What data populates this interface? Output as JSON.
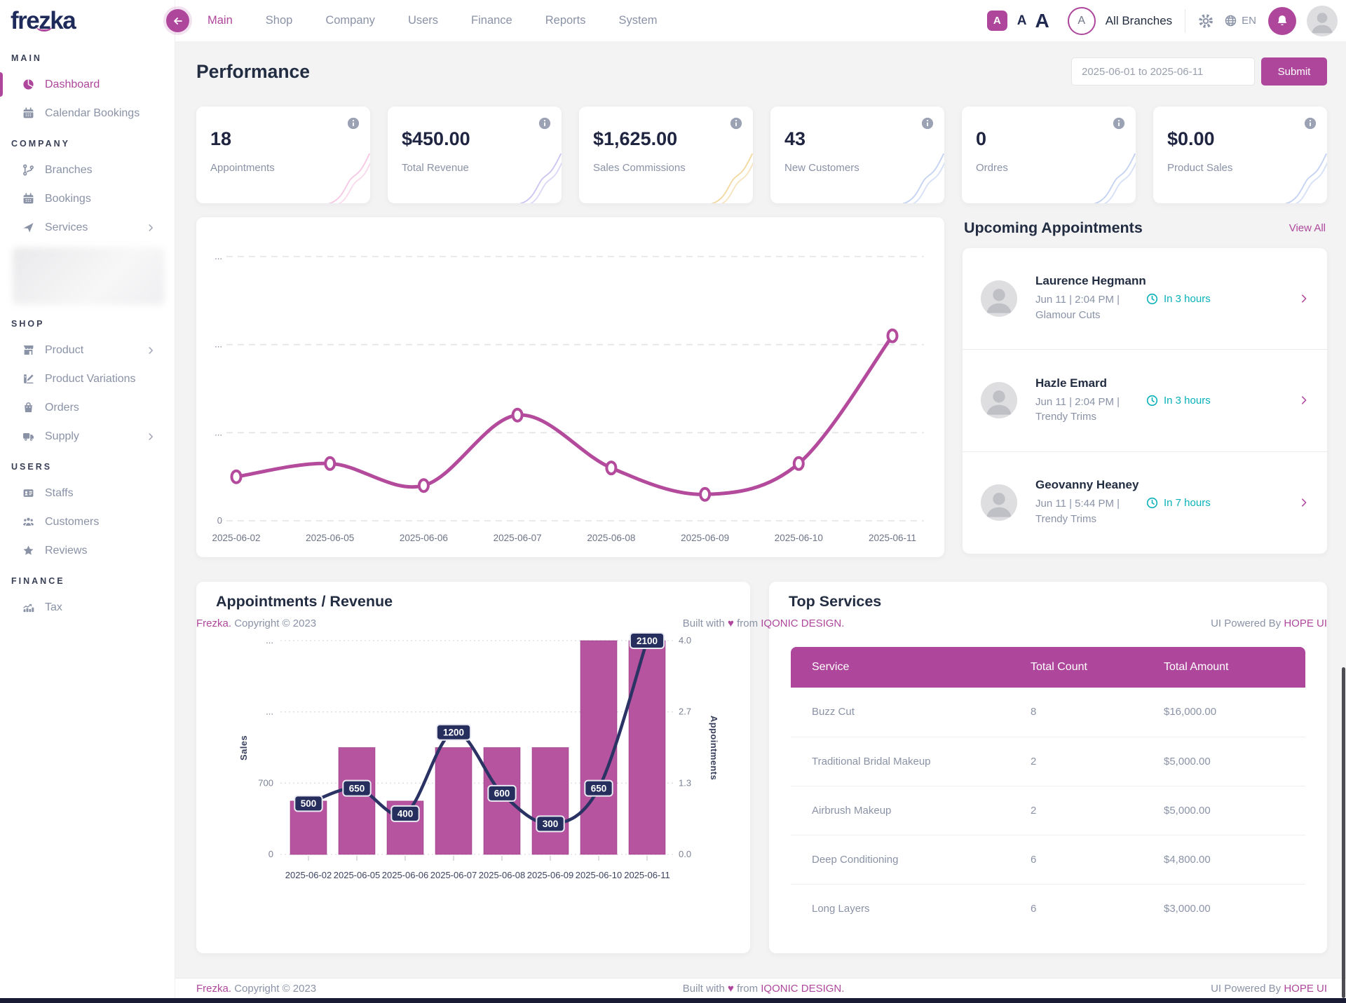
{
  "brand": {
    "pre": "fre",
    "z": "z",
    "post": "ka"
  },
  "navbar": {
    "menu": [
      {
        "label": "Main",
        "active": true
      },
      {
        "label": "Shop",
        "active": false
      },
      {
        "label": "Company",
        "active": false
      },
      {
        "label": "Users",
        "active": false
      },
      {
        "label": "Finance",
        "active": false
      },
      {
        "label": "Reports",
        "active": false
      },
      {
        "label": "System",
        "active": false
      }
    ],
    "font_small": "A",
    "font_medium": "A",
    "font_large": "A",
    "branch_avatar_initial": "A",
    "branch_selector": "All Branches",
    "language": "EN"
  },
  "sidebar": {
    "sections": [
      {
        "title": "MAIN",
        "items": [
          {
            "label": "Dashboard",
            "icon": "pie-chart-icon",
            "active": true
          },
          {
            "label": "Calendar Bookings",
            "icon": "calendar-icon"
          }
        ]
      },
      {
        "title": "COMPANY",
        "items": [
          {
            "label": "Branches",
            "icon": "git-branch-icon"
          },
          {
            "label": "Bookings",
            "icon": "calendar-icon"
          },
          {
            "label": "Services",
            "icon": "send-icon",
            "chevron": true
          },
          {
            "blurred": true
          }
        ]
      },
      {
        "title": "SHOP",
        "items": [
          {
            "label": "Product",
            "icon": "store-icon",
            "chevron": true
          },
          {
            "label": "Product Variations",
            "icon": "variations-icon"
          },
          {
            "label": "Orders",
            "icon": "shopping-bag-icon"
          },
          {
            "label": "Supply",
            "icon": "truck-icon",
            "chevron": true
          }
        ]
      },
      {
        "title": "USERS",
        "items": [
          {
            "label": "Staffs",
            "icon": "id-card-icon"
          },
          {
            "label": "Customers",
            "icon": "users-icon"
          },
          {
            "label": "Reviews",
            "icon": "star-icon"
          }
        ]
      },
      {
        "title": "FINANCE",
        "items": [
          {
            "label": "Tax",
            "icon": "tax-icon"
          }
        ]
      }
    ]
  },
  "page": {
    "title": "Performance",
    "date_range": "2025-06-01 to 2025-06-11",
    "submit": "Submit"
  },
  "stats": [
    {
      "value": "18",
      "label": "Appointments",
      "spark_color": "#f6c9e4"
    },
    {
      "value": "$450.00",
      "label": "Total Revenue",
      "spark_color": "#cdc6f2"
    },
    {
      "value": "$1,625.00",
      "label": "Sales Commissions",
      "spark_color": "#f2d9a2"
    },
    {
      "value": "43",
      "label": "New Customers",
      "spark_color": "#c5d3f2"
    },
    {
      "value": "0",
      "label": "Ordres",
      "spark_color": "#c5d3f2"
    },
    {
      "value": "$0.00",
      "label": "Product Sales",
      "spark_color": "#c5d3f2"
    }
  ],
  "chart_data": [
    {
      "type": "line",
      "name": "performance-trend",
      "x": [
        "2025-06-02",
        "2025-06-05",
        "2025-06-06",
        "2025-06-07",
        "2025-06-08",
        "2025-06-09",
        "2025-06-10",
        "2025-06-11"
      ],
      "series": [
        {
          "name": "Sales",
          "values": [
            500,
            650,
            400,
            1200,
            600,
            300,
            650,
            2100
          ]
        }
      ],
      "ylim": [
        0,
        3000
      ],
      "ytick_labels": [
        "...",
        "...",
        "...",
        "0"
      ],
      "grid": "dashed-horizontal",
      "line_color": "#b44a9c"
    },
    {
      "type": "bar+line",
      "title": "Appointments / Revenue",
      "categories": [
        "2025-06-02",
        "2025-06-05",
        "2025-06-06",
        "2025-06-07",
        "2025-06-08",
        "2025-06-09",
        "2025-06-10",
        "2025-06-11"
      ],
      "series": [
        {
          "name": "Appointments",
          "render": "bar",
          "axis": "right",
          "values": [
            1,
            2,
            1,
            2,
            2,
            2,
            4,
            4
          ],
          "color": "#b7549f"
        },
        {
          "name": "Sales",
          "render": "line",
          "axis": "left",
          "values": [
            500,
            650,
            400,
            1200,
            600,
            300,
            650,
            2100
          ],
          "point_labels": [
            "500",
            "650",
            "400",
            "1200",
            "600",
            "300",
            "650",
            "2100"
          ],
          "color": "#2b3264"
        }
      ],
      "left_axis": {
        "title": "Sales",
        "tick_labels": [
          "...",
          "...",
          "700",
          "0"
        ],
        "max": 2100
      },
      "right_axis": {
        "title": "Appointments",
        "tick_labels": [
          "4.0",
          "2.7",
          "1.3",
          "0.0"
        ],
        "max": 4
      },
      "grid": "dotted-horizontal",
      "legend": "none"
    }
  ],
  "appointments": {
    "title": "Upcoming Appointments",
    "view_all": "View All",
    "items": [
      {
        "name": "Laurence Hegmann",
        "details": "Jun 11 | 2:04 PM | Glamour Cuts",
        "eta": "In 3 hours"
      },
      {
        "name": "Hazle Emard",
        "details": "Jun 11 | 2:04 PM | Trendy Trims",
        "eta": "In 3 hours"
      },
      {
        "name": "Geovanny Heaney",
        "details": "Jun 11 | 5:44 PM | Trendy Trims",
        "eta": "In 7 hours"
      }
    ]
  },
  "top_services": {
    "title": "Top Services",
    "columns": [
      "Service",
      "Total Count",
      "Total Amount"
    ],
    "rows": [
      [
        "Buzz Cut",
        "8",
        "$16,000.00"
      ],
      [
        "Traditional Bridal Makeup",
        "2",
        "$5,000.00"
      ],
      [
        "Airbrush Makeup",
        "2",
        "$5,000.00"
      ],
      [
        "Deep Conditioning",
        "6",
        "$4,800.00"
      ],
      [
        "Long Layers",
        "6",
        "$3,000.00"
      ]
    ]
  },
  "footer": {
    "brand": "Frezka.",
    "copyright": "Copyright © 2023",
    "built_prefix": "Built with",
    "heart": "♥",
    "built_middle": "from",
    "built_link": "IQONIC DESIGN.",
    "powered_prefix": "UI Powered By",
    "powered_link": "HOPE UI"
  }
}
